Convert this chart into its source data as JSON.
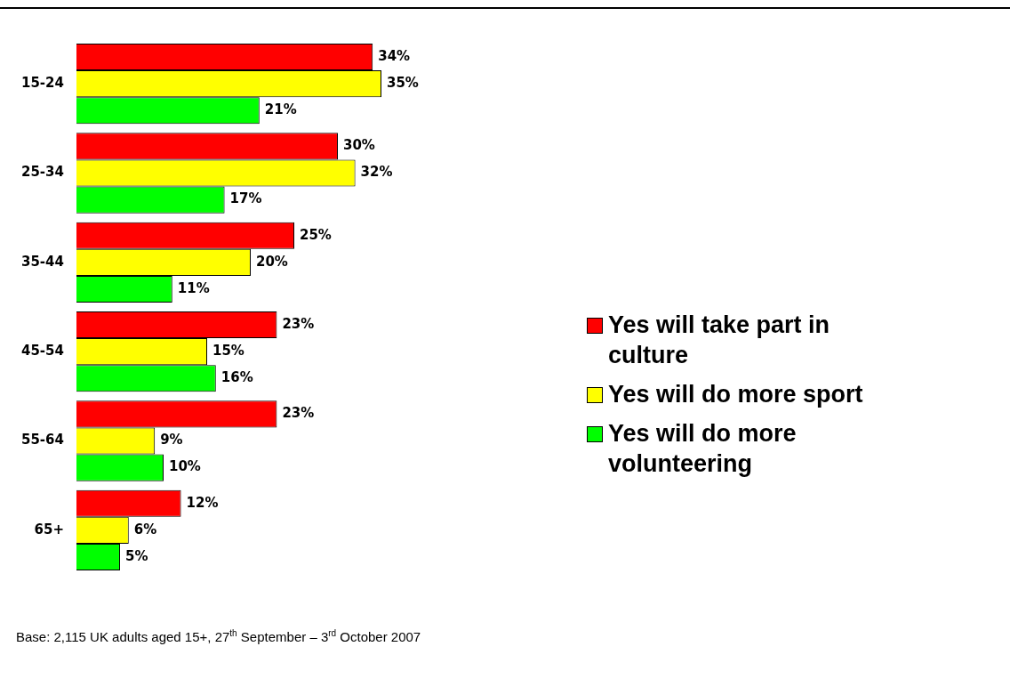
{
  "chart_data": {
    "type": "bar",
    "orientation": "horizontal",
    "categories": [
      "15-24",
      "25-34",
      "35-44",
      "45-54",
      "55-64",
      "65+"
    ],
    "series": [
      {
        "name": "Yes will take part in culture",
        "color": "#ff0000",
        "values": [
          34,
          30,
          25,
          23,
          23,
          12
        ],
        "value_labels": [
          "34%",
          "30%",
          "25%",
          "23%",
          "23%",
          "12%"
        ]
      },
      {
        "name": "Yes will do more sport",
        "color": "#ffff00",
        "values": [
          35,
          32,
          20,
          15,
          9,
          6
        ],
        "value_labels": [
          "35%",
          "32%",
          "20%",
          "15%",
          "9%",
          "6%"
        ]
      },
      {
        "name": "Yes will do more volunteering",
        "color": "#00ff00",
        "values": [
          21,
          17,
          11,
          16,
          10,
          5
        ],
        "value_labels": [
          "21%",
          "17%",
          "11%",
          "16%",
          "10%",
          "5%"
        ]
      }
    ],
    "legend": "right",
    "annotations": [
      "Base: 2,115 UK adults aged 15+, 27$^{th}$ September – 3$^{rd}$ October 2007"
    ]
  }
}
